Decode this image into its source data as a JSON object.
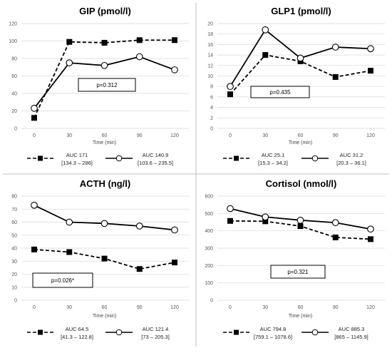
{
  "chart_data": [
    {
      "type": "line",
      "title": "GIP (pmol/l)",
      "xlabel": "Time (min)",
      "ylabel": "",
      "x": [
        0,
        30,
        60,
        90,
        120
      ],
      "ylim": [
        0,
        120
      ],
      "yticks": [
        0,
        20,
        40,
        60,
        80,
        100,
        120
      ],
      "grid": true,
      "annotation": "p=0.312",
      "series": [
        {
          "values": [
            12,
            99,
            98,
            101,
            101
          ],
          "style": "dashed",
          "marker": "filled-square",
          "legend": [
            "AUC 171",
            "[134.3 – 286]"
          ]
        },
        {
          "values": [
            23,
            75,
            72,
            82,
            67
          ],
          "style": "solid",
          "marker": "open-circle",
          "legend": [
            "AUC 140.9",
            "[103.6 – 235.5]"
          ]
        }
      ]
    },
    {
      "type": "line",
      "title": "GLP1 (pmol/l)",
      "xlabel": "Time (min)",
      "ylabel": "",
      "x": [
        0,
        30,
        60,
        90,
        120
      ],
      "ylim": [
        0,
        20
      ],
      "yticks": [
        0,
        2,
        4,
        6,
        8,
        10,
        12,
        14,
        16,
        18,
        20
      ],
      "grid": true,
      "annotation": "p=0.435",
      "series": [
        {
          "values": [
            6.5,
            14,
            12.8,
            9.8,
            11
          ],
          "style": "dashed",
          "marker": "filled-square",
          "legend": [
            "AUC 25.1",
            "[15.3 – 34.2]"
          ]
        },
        {
          "values": [
            8,
            18.8,
            13.4,
            15.5,
            15.2
          ],
          "style": "solid",
          "marker": "open-circle",
          "legend": [
            "AUC 31.2",
            "[20.3 – 36.1]"
          ]
        }
      ]
    },
    {
      "type": "line",
      "title": "ACTH (ng/l)",
      "xlabel": "Time (min)",
      "ylabel": "",
      "x": [
        0,
        30,
        60,
        90,
        120
      ],
      "ylim": [
        0,
        80
      ],
      "yticks": [
        0,
        10,
        20,
        30,
        40,
        50,
        60,
        70,
        80
      ],
      "grid": true,
      "annotation": "p=0.026*",
      "series": [
        {
          "values": [
            39,
            37,
            32,
            24,
            29
          ],
          "style": "dashed",
          "marker": "filled-square",
          "legend": [
            "AUC 64.5",
            "[41.3 – 122.8]"
          ]
        },
        {
          "values": [
            73,
            60,
            59,
            57,
            54
          ],
          "style": "solid",
          "marker": "open-circle",
          "legend": [
            "AUC 121.4",
            "[73 – 205.3]"
          ]
        }
      ]
    },
    {
      "type": "line",
      "title": "Cortisol (nmol/l)",
      "xlabel": "Time (min)",
      "ylabel": "",
      "x": [
        0,
        30,
        60,
        90,
        120
      ],
      "ylim": [
        0,
        600
      ],
      "yticks": [
        0,
        100,
        200,
        300,
        400,
        500,
        600
      ],
      "grid": true,
      "annotation": "p=0.321",
      "series": [
        {
          "values": [
            457,
            455,
            427,
            362,
            352
          ],
          "style": "dashed",
          "marker": "filled-square",
          "legend": [
            "AUC 794.8",
            "[759.1 – 1078.6]"
          ]
        },
        {
          "values": [
            528,
            480,
            461,
            447,
            410
          ],
          "style": "solid",
          "marker": "open-circle",
          "legend": [
            "AUC 885.3",
            "[865 – 1145.9]"
          ]
        }
      ]
    }
  ]
}
